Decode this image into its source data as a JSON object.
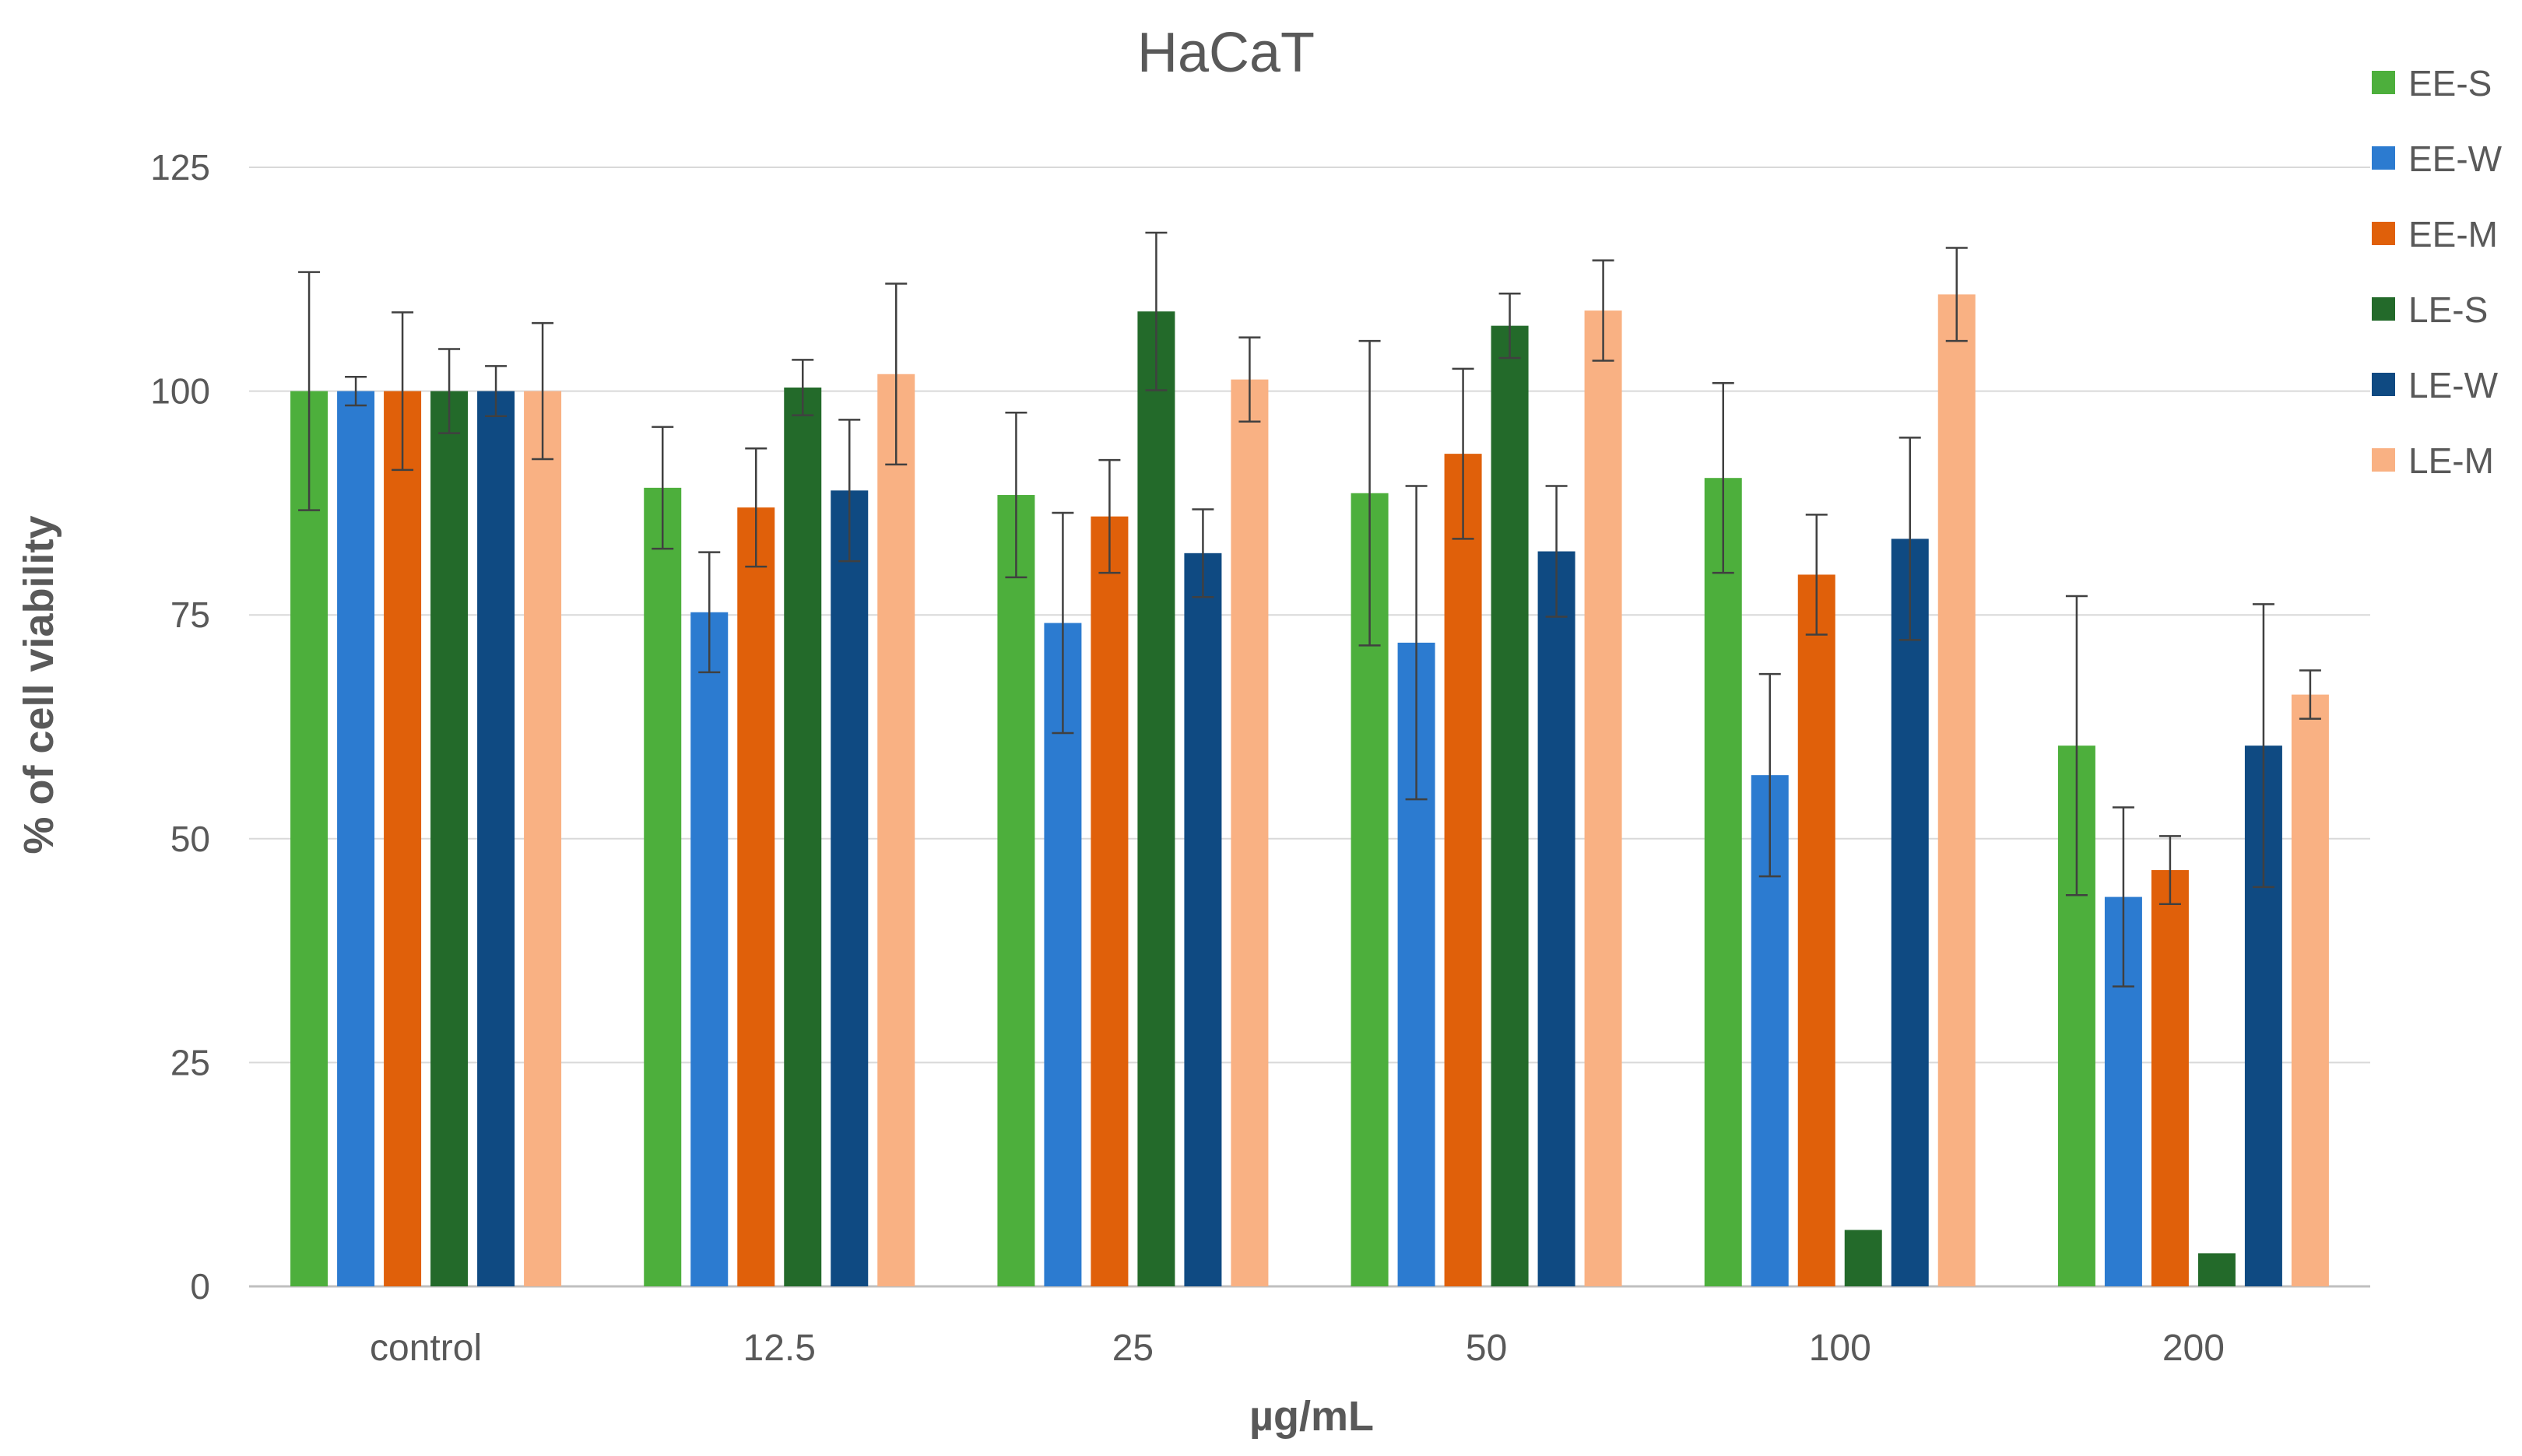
{
  "chart_data": {
    "type": "bar",
    "title": "HaCaT",
    "xlabel": "µg/mL",
    "ylabel": "% of cell viability",
    "ylim": [
      0,
      125
    ],
    "yticks": [
      0,
      25,
      50,
      75,
      100,
      125
    ],
    "grid": true,
    "legend_position": "right",
    "categories": [
      "control",
      "12.5",
      "25",
      "50",
      "100",
      "200"
    ],
    "series": [
      {
        "name": "EE-S",
        "color": "#4DAF3C",
        "values": [
          100,
          89.2,
          88.4,
          88.6,
          90.3,
          60.4
        ],
        "errors": [
          13.3,
          6.8,
          9.2,
          17.0,
          10.6,
          16.7
        ]
      },
      {
        "name": "EE-W",
        "color": "#2C7BD0",
        "values": [
          100,
          75.3,
          74.1,
          71.9,
          57.1,
          43.5
        ],
        "errors": [
          1.6,
          6.7,
          12.3,
          17.5,
          11.3,
          10.0
        ]
      },
      {
        "name": "EE-M",
        "color": "#E0600A",
        "values": [
          100,
          87.0,
          86.0,
          93.0,
          79.5,
          46.5
        ],
        "errors": [
          8.8,
          6.6,
          6.3,
          9.5,
          6.7,
          3.8
        ]
      },
      {
        "name": "LE-S",
        "color": "#236A2A",
        "values": [
          100,
          100.4,
          108.9,
          107.3,
          6.3,
          3.7
        ],
        "errors": [
          4.7,
          3.1,
          8.8,
          3.6,
          0,
          0
        ]
      },
      {
        "name": "LE-W",
        "color": "#0F4A82",
        "values": [
          100,
          88.9,
          81.9,
          82.1,
          83.5,
          60.4
        ],
        "errors": [
          2.8,
          7.9,
          4.9,
          7.3,
          11.3,
          15.8
        ]
      },
      {
        "name": "LE-M",
        "color": "#F9B183",
        "values": [
          100,
          101.9,
          101.3,
          109.0,
          110.8,
          66.1
        ],
        "errors": [
          7.6,
          10.1,
          4.7,
          5.6,
          5.2,
          2.7
        ]
      }
    ]
  }
}
